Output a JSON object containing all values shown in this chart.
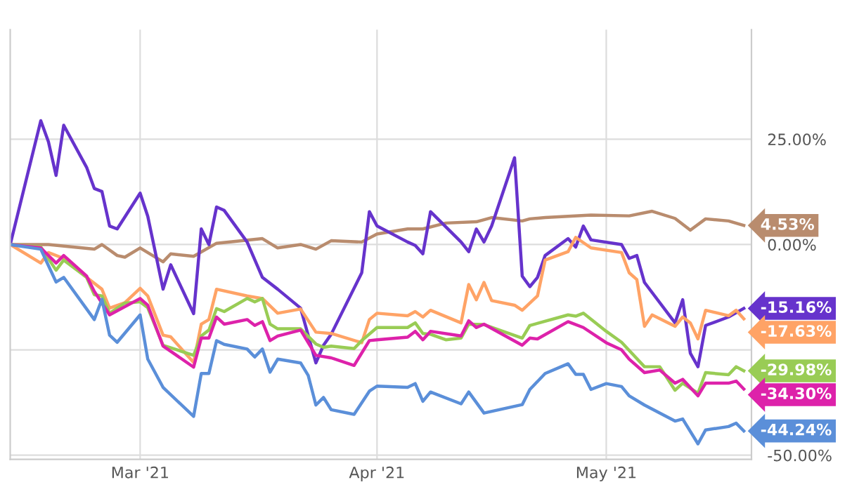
{
  "chart_data": {
    "type": "line",
    "xlim": [
      "2021-02-12",
      "2021-05-20"
    ],
    "xticks": [
      {
        "value": "2021-03-01",
        "label": "Mar '21"
      },
      {
        "value": "2021-04-01",
        "label": "Apr '21"
      },
      {
        "value": "2021-05-01",
        "label": "May '21"
      }
    ],
    "ylim": [
      -51,
      51
    ],
    "yticks": [
      {
        "value": 25,
        "label": "25.00%"
      },
      {
        "value": 0,
        "label": "0.00%"
      },
      {
        "value": -25,
        "label": null
      },
      {
        "value": -50,
        "label": "-50.00%"
      }
    ],
    "annotations": [
      {
        "text": "4.53%",
        "x": "2021-05-19",
        "y": 4.53
      },
      {
        "text": "-15.16%",
        "x": "2021-05-19",
        "y": -15.16
      },
      {
        "text": "-17.63%",
        "x": "2021-05-19",
        "y": -17.63
      },
      {
        "text": "-29.98%",
        "x": "2021-05-19",
        "y": -29.98
      },
      {
        "text": "-34.30%",
        "x": "2021-05-19",
        "y": -34.3
      },
      {
        "text": "-44.24%",
        "x": "2021-05-19",
        "y": -44.24
      }
    ],
    "grid": true,
    "legend": false,
    "marker": "none",
    "line_style": "solid",
    "series": [
      {
        "color": "#b98c6e",
        "x": [
          "2021-02-12",
          "2021-02-17",
          "2021-02-23",
          "2021-02-24",
          "2021-02-26",
          "2021-02-27",
          "2021-03-01",
          "2021-03-04",
          "2021-03-05",
          "2021-03-08",
          "2021-03-11",
          "2021-03-17",
          "2021-03-19",
          "2021-03-22",
          "2021-03-24",
          "2021-03-26",
          "2021-03-30",
          "2021-04-01",
          "2021-04-05",
          "2021-04-07",
          "2021-04-10",
          "2021-04-14",
          "2021-04-16",
          "2021-04-20",
          "2021-04-21",
          "2021-04-23",
          "2021-04-29",
          "2021-05-04",
          "2021-05-07",
          "2021-05-10",
          "2021-05-12",
          "2021-05-14",
          "2021-05-17",
          "2021-05-19"
        ],
        "values": [
          0,
          0,
          -1.1,
          0,
          -2.6,
          -3,
          -0.8,
          -4.1,
          -2.2,
          -2.8,
          0.3,
          1.4,
          -0.8,
          0,
          -1.1,
          0.9,
          0.6,
          2.5,
          3.7,
          3.7,
          5.1,
          5.4,
          6.4,
          5.6,
          6.1,
          6.4,
          7,
          6.8,
          7.9,
          6.2,
          3.4,
          6.1,
          5.6,
          4.53
        ]
      },
      {
        "color": "#6633cc",
        "x": [
          "2021-02-12",
          "2021-02-16",
          "2021-02-17",
          "2021-02-18",
          "2021-02-19",
          "2021-02-22",
          "2021-02-23",
          "2021-02-24",
          "2021-02-25",
          "2021-02-26",
          "2021-03-01",
          "2021-03-02",
          "2021-03-04",
          "2021-03-05",
          "2021-03-08",
          "2021-03-09",
          "2021-03-10",
          "2021-03-11",
          "2021-03-12",
          "2021-03-15",
          "2021-03-17",
          "2021-03-19",
          "2021-03-22",
          "2021-03-24",
          "2021-03-25",
          "2021-03-26",
          "2021-03-30",
          "2021-03-31",
          "2021-04-01",
          "2021-04-05",
          "2021-04-06",
          "2021-04-07",
          "2021-04-08",
          "2021-04-12",
          "2021-04-13",
          "2021-04-14",
          "2021-04-15",
          "2021-04-16",
          "2021-04-19",
          "2021-04-20",
          "2021-04-21",
          "2021-04-22",
          "2021-04-23",
          "2021-04-26",
          "2021-04-27",
          "2021-04-28",
          "2021-04-29",
          "2021-05-03",
          "2021-05-04",
          "2021-05-05",
          "2021-05-06",
          "2021-05-10",
          "2021-05-11",
          "2021-05-12",
          "2021-05-13",
          "2021-05-14",
          "2021-05-17",
          "2021-05-19"
        ],
        "values": [
          0,
          29.4,
          24.4,
          16.4,
          28.3,
          18.3,
          13.3,
          12.6,
          4.4,
          3.7,
          12.2,
          6.7,
          -10.6,
          -4.8,
          -16.4,
          3.7,
          0,
          8.9,
          8.1,
          0.6,
          -7.8,
          -10.6,
          -15.1,
          -28.1,
          -23.9,
          -21.3,
          -6.7,
          7.8,
          4.4,
          0.6,
          -0.2,
          -2.2,
          7.8,
          0.6,
          -1.7,
          3.7,
          0.6,
          4.4,
          20.6,
          -7.5,
          -10,
          -7.8,
          -2.6,
          1.4,
          -0.6,
          4.4,
          1.1,
          0,
          -3.3,
          -2.6,
          -9,
          -18.6,
          -13.1,
          -25.8,
          -29,
          -19.2,
          -17.2,
          -15.16
        ]
      },
      {
        "color": "#ffa366",
        "x": [
          "2021-02-12",
          "2021-02-16",
          "2021-02-17",
          "2021-02-19",
          "2021-02-22",
          "2021-02-24",
          "2021-02-25",
          "2021-02-27",
          "2021-03-01",
          "2021-03-02",
          "2021-03-04",
          "2021-03-05",
          "2021-03-08",
          "2021-03-09",
          "2021-03-10",
          "2021-03-11",
          "2021-03-15",
          "2021-03-17",
          "2021-03-19",
          "2021-03-22",
          "2021-03-24",
          "2021-03-26",
          "2021-03-30",
          "2021-03-31",
          "2021-04-01",
          "2021-04-05",
          "2021-04-06",
          "2021-04-07",
          "2021-04-08",
          "2021-04-12",
          "2021-04-13",
          "2021-04-14",
          "2021-04-15",
          "2021-04-16",
          "2021-04-19",
          "2021-04-20",
          "2021-04-22",
          "2021-04-23",
          "2021-04-26",
          "2021-04-27",
          "2021-04-29",
          "2021-05-03",
          "2021-05-04",
          "2021-05-05",
          "2021-05-06",
          "2021-05-07",
          "2021-05-10",
          "2021-05-11",
          "2021-05-12",
          "2021-05-13",
          "2021-05-14",
          "2021-05-17",
          "2021-05-18",
          "2021-05-19"
        ],
        "values": [
          0,
          -4.4,
          -1.9,
          -3.3,
          -7.8,
          -10.6,
          -15.1,
          -13.8,
          -10.4,
          -12.2,
          -21.5,
          -21.9,
          -28,
          -18.9,
          -17.8,
          -10.6,
          -12.2,
          -12.8,
          -16.3,
          -15.3,
          -20.8,
          -21.1,
          -23.3,
          -17.8,
          -16.3,
          -16.9,
          -15.9,
          -17.2,
          -15.6,
          -18.6,
          -9.5,
          -13.1,
          -9,
          -13.3,
          -14.4,
          -15.6,
          -12.2,
          -3.7,
          -1.7,
          1.7,
          -0.8,
          -1.9,
          -6.7,
          -8.3,
          -19.4,
          -16.7,
          -19.4,
          -17.2,
          -18.6,
          -22.4,
          -15.6,
          -16.9,
          -15.6,
          -17.63
        ]
      },
      {
        "color": "#99cc55",
        "x": [
          "2021-02-12",
          "2021-02-16",
          "2021-02-18",
          "2021-02-19",
          "2021-02-22",
          "2021-02-23",
          "2021-02-24",
          "2021-02-25",
          "2021-02-27",
          "2021-03-01",
          "2021-03-02",
          "2021-03-04",
          "2021-03-08",
          "2021-03-09",
          "2021-03-10",
          "2021-03-11",
          "2021-03-12",
          "2021-03-15",
          "2021-03-16",
          "2021-03-17",
          "2021-03-18",
          "2021-03-19",
          "2021-03-22",
          "2021-03-24",
          "2021-03-25",
          "2021-03-26",
          "2021-03-29",
          "2021-03-30",
          "2021-04-01",
          "2021-04-05",
          "2021-04-06",
          "2021-04-07",
          "2021-04-08",
          "2021-04-10",
          "2021-04-12",
          "2021-04-13",
          "2021-04-15",
          "2021-04-20",
          "2021-04-21",
          "2021-04-26",
          "2021-04-27",
          "2021-04-28",
          "2021-05-01",
          "2021-05-03",
          "2021-05-06",
          "2021-05-08",
          "2021-05-10",
          "2021-05-11",
          "2021-05-13",
          "2021-05-14",
          "2021-05-17",
          "2021-05-18",
          "2021-05-19"
        ],
        "values": [
          0,
          -0.6,
          -6.1,
          -3.7,
          -7.8,
          -11.9,
          -12.2,
          -16.3,
          -13.9,
          -13.6,
          -15,
          -23.9,
          -26.3,
          -21.7,
          -20.3,
          -15.2,
          -15.9,
          -12.8,
          -13.6,
          -12.8,
          -18.9,
          -20,
          -20,
          -23.6,
          -24.4,
          -24.1,
          -24.7,
          -22.8,
          -19.7,
          -19.7,
          -18.6,
          -21.1,
          -21.3,
          -22.6,
          -22.2,
          -18.9,
          -19,
          -22.2,
          -19.2,
          -16.7,
          -17,
          -16.3,
          -20.6,
          -23.2,
          -29,
          -29,
          -34.6,
          -32.9,
          -35.3,
          -30.4,
          -30.9,
          -29,
          -29.98
        ]
      },
      {
        "color": "#dd22aa",
        "x": [
          "2021-02-12",
          "2021-02-16",
          "2021-02-18",
          "2021-02-19",
          "2021-02-22",
          "2021-02-23",
          "2021-02-25",
          "2021-03-01",
          "2021-03-02",
          "2021-03-04",
          "2021-03-08",
          "2021-03-09",
          "2021-03-10",
          "2021-03-11",
          "2021-03-12",
          "2021-03-15",
          "2021-03-16",
          "2021-03-17",
          "2021-03-18",
          "2021-03-19",
          "2021-03-22",
          "2021-03-24",
          "2021-03-26",
          "2021-03-29",
          "2021-03-31",
          "2021-04-01",
          "2021-04-05",
          "2021-04-06",
          "2021-04-07",
          "2021-04-08",
          "2021-04-12",
          "2021-04-13",
          "2021-04-14",
          "2021-04-15",
          "2021-04-20",
          "2021-04-21",
          "2021-04-22",
          "2021-04-26",
          "2021-04-28",
          "2021-05-01",
          "2021-05-03",
          "2021-05-04",
          "2021-05-06",
          "2021-05-08",
          "2021-05-10",
          "2021-05-11",
          "2021-05-13",
          "2021-05-14",
          "2021-05-17",
          "2021-05-18",
          "2021-05-19"
        ],
        "values": [
          0,
          -0.8,
          -4.4,
          -2.6,
          -7.5,
          -11.1,
          -16.7,
          -12.8,
          -14.4,
          -24.1,
          -29.1,
          -22.2,
          -22.2,
          -17.2,
          -18.9,
          -17.8,
          -19.2,
          -18.3,
          -22.8,
          -21.7,
          -20.3,
          -26.3,
          -26.9,
          -28.7,
          -22.8,
          -22.6,
          -22,
          -20.6,
          -22.6,
          -20.6,
          -21.7,
          -18.1,
          -19.7,
          -18.9,
          -23.9,
          -22.2,
          -22.4,
          -18.3,
          -19.7,
          -23.3,
          -25,
          -27.2,
          -30.4,
          -29.8,
          -32.9,
          -32,
          -35.9,
          -32.9,
          -32.9,
          -32.4,
          -34.3
        ]
      },
      {
        "color": "#5b8fd9",
        "x": [
          "2021-02-12",
          "2021-02-16",
          "2021-02-17",
          "2021-02-18",
          "2021-02-19",
          "2021-02-23",
          "2021-02-24",
          "2021-02-25",
          "2021-02-26",
          "2021-03-01",
          "2021-03-02",
          "2021-03-04",
          "2021-03-08",
          "2021-03-09",
          "2021-03-10",
          "2021-03-11",
          "2021-03-12",
          "2021-03-15",
          "2021-03-16",
          "2021-03-17",
          "2021-03-18",
          "2021-03-19",
          "2021-03-22",
          "2021-03-23",
          "2021-03-24",
          "2021-03-25",
          "2021-03-26",
          "2021-03-29",
          "2021-03-31",
          "2021-04-01",
          "2021-04-05",
          "2021-04-06",
          "2021-04-07",
          "2021-04-08",
          "2021-04-12",
          "2021-04-13",
          "2021-04-15",
          "2021-04-20",
          "2021-04-21",
          "2021-04-23",
          "2021-04-26",
          "2021-04-27",
          "2021-04-28",
          "2021-04-29",
          "2021-05-01",
          "2021-05-03",
          "2021-05-04",
          "2021-05-06",
          "2021-05-10",
          "2021-05-11",
          "2021-05-13",
          "2021-05-14",
          "2021-05-17",
          "2021-05-18",
          "2021-05-19"
        ],
        "values": [
          0,
          -1.1,
          -5,
          -8.9,
          -7.8,
          -17.8,
          -13,
          -21.5,
          -23.2,
          -16.7,
          -27.2,
          -33.9,
          -40.8,
          -30.6,
          -30.6,
          -22.8,
          -23.7,
          -24.8,
          -26.7,
          -24.8,
          -30.3,
          -27.2,
          -28.1,
          -31.1,
          -38.1,
          -36.3,
          -39.2,
          -40.3,
          -34.8,
          -33.6,
          -33.9,
          -33,
          -37.2,
          -35,
          -37.8,
          -35,
          -40,
          -38,
          -34.4,
          -30.6,
          -28.3,
          -30.8,
          -30.8,
          -34.4,
          -33,
          -33.7,
          -35.9,
          -38.1,
          -41.9,
          -41.4,
          -47.3,
          -44,
          -43.2,
          -42.4,
          -44.24
        ]
      }
    ]
  }
}
